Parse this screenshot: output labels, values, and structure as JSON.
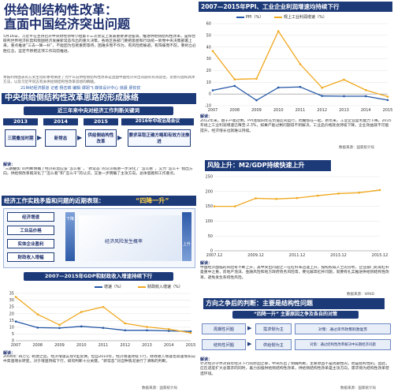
{
  "header": {
    "title_line1": "供给侧结构性改革：",
    "title_line2": "直面中国经济突出问题",
    "intro": "5月16日，习近平在主持召开中央财经领导小组第十三次会议上发表重要讲话强调，推进供给侧结构性改革，是综合研判世界经济形势和我国经济发展新常态作出的重大决策，各地区各部门要把思想和行动统一到党中央决策部署上来，重点推进“三去一降一补”，不能因为包袱重而等待，困难多而不作为，有风险而躲避，有阵痛而不前，要树立必胜信念，坚定不移把这项工作向前推进。",
    "source": "本报利用图表的方式生动形象地阐述了为什么说供给侧结构性改革是直面中国经济突出问题的有效途径，思想内涵和具体方法，以及习近平同志有关供给侧结构性改革思想的精髓。",
    "reporters": "21世纪经济报道 记者 杨志锦  编辑 谭翊飞  媒体设计中心 徐晨 廖钦钦"
  },
  "ideas_section": {
    "band": "中央供给侧结构性改革思路的形成脉络",
    "sub_band": "近三年来中央对经济工作判断关键词",
    "years": [
      "2013",
      "2014",
      "2015",
      "2016年中政治局会议"
    ],
    "steps": [
      "三期叠加时期",
      "新常态",
      "供给侧结构性改革",
      "要求采取正确方略和有效方法推进"
    ],
    "interp_label": "解读：",
    "interp_text": "“三期叠加”的判断明确了经济形势应该“怎么看”，“新常态”的认识既进一步深化了“怎么看”，又为“怎么干”指出方向，供给侧改革既深化了“怎么看”和“怎么干”的认识，又进一步明确了主攻方向，总体思路和工作重点。"
  },
  "contradiction_section": {
    "band": "经济工作实践矛盾和问题的近期表现：",
    "quote": "“四降一升”",
    "items": [
      "经济增速",
      "工业品价格",
      "实体企业盈利",
      "财政收入增幅"
    ],
    "down_label": "下降",
    "risk_label": "经济风险发生概率",
    "up_label": "上升"
  },
  "gdp_chart_section": {
    "band": "2007—2015年GDP和财政收入增速持续下行",
    "interp_label": "解读：",
    "interp_text": "2008年“四万亿”刺激之后，经济增速实现V型反弹。但自2010年，经济增速持续下行，财政收入增速也高速增长向中高速增长转变。对于增速持续下行，如何判断十分关键。“新常态”对这种情况进行了清晰的判断。",
    "credit": "数据来源：国家统计局"
  },
  "ppi_chart_section": {
    "band": "2007—2015年PPI、工业企业利润增速均持续下行",
    "interp_label": "解读：",
    "interp_text": "2012年来，由于产能过剩，PPI连续四年在负值区间运行，而叠加在一起，新年来，工业企业盈利能力下降，2015年规上工业利润增速已降至-2.3%，如果产能过剩问题得不到解决，工业品价格就会持续下降，企业效益就不可能提升，经济增长也就难以持续。",
    "credit": "数据来源：国家统计局"
  },
  "m2_chart_section": {
    "band": "风险上升：M2/GDP持续快速上升",
    "interp_label": "解读：",
    "interp_text": "中国经济面临的风险有不断上升，其中突出问题之一在杠杆率迅速上升，按照权威人士的分析，企业部门的高杠杆是重中之重，房地产泡沫、金融风险和地方政府债务风险等，要化解高杠杆问题，就要有扎实推进供给侧结构性改革，避免发生系统性风险。",
    "credit": "数据来源：WIND"
  },
  "direction_section": {
    "band": "方向之争后的判断：主要是结构性问题",
    "sub_band": "“四降一升”  主要原因之争及各自的对策",
    "left": [
      "周期性问题",
      "结构性问题"
    ],
    "mid": [
      "需求侧为主",
      "供给侧为主"
    ],
    "right": [
      "对策：通过货币政策刺激复苏",
      "对策：通过结构性改革解决中长期经济问题"
    ],
    "interp_label": "解读：",
    "interp_text": "针对经济学界对四年经济下行的原因之争，中央作出了明确判断，主要原因不是周期性的，而是结构性的。因此，应在适度扩大总需求的同时，着力加强供给侧结构性改革，供给侧结构性改革是主攻方向，需求侧为结构性改革营造环境。",
    "credit": "数据来源：国家统计局"
  },
  "chart_data": [
    {
      "type": "line",
      "title": "2007—2015年GDP和财政收入增速持续下行",
      "x": [
        "2007",
        "2008",
        "2009",
        "2010",
        "2011",
        "2012",
        "2013",
        "2014",
        "2015"
      ],
      "series": [
        {
          "name": "增速（%）",
          "values": [
            14.2,
            9.7,
            9.4,
            10.6,
            9.5,
            7.7,
            7.7,
            7.3,
            6.9
          ],
          "color": "#2255a4"
        },
        {
          "name": "财政收入增速（%）",
          "values": [
            32.4,
            19.5,
            11.7,
            21.3,
            25.0,
            12.8,
            10.2,
            8.6,
            5.8
          ],
          "color": "#f0a820"
        }
      ],
      "ylim": [
        0,
        35
      ],
      "yticks": [
        0,
        5,
        10,
        15,
        20,
        25,
        30,
        35
      ]
    },
    {
      "type": "line",
      "title": "2007—2015年PPI、工业企业利润增速均持续下行",
      "x": [
        "2007",
        "2008",
        "2009",
        "2010",
        "2011",
        "2012",
        "2013",
        "2014",
        "2015"
      ],
      "series": [
        {
          "name": "PPI（%）",
          "values": [
            3.1,
            6.9,
            -5.4,
            5.5,
            6.0,
            -1.7,
            -1.9,
            -1.9,
            -5.2
          ],
          "color": "#2255a4"
        },
        {
          "name": "规上工业利润增速（%）",
          "values": [
            36.7,
            12.5,
            13.0,
            53.6,
            25.4,
            5.3,
            12.2,
            3.3,
            -2.3
          ],
          "color": "#f0a820"
        }
      ],
      "ylim": [
        -10,
        60
      ],
      "yticks": [
        -10,
        0,
        10,
        20,
        30,
        40,
        50,
        60
      ]
    },
    {
      "type": "line",
      "title": "风险上升：M2/GDP持续快速上升",
      "x": [
        "2007.12",
        "2008.12",
        "2009.12",
        "2010.12",
        "2011.12",
        "2012.12",
        "2013.12",
        "2014.12",
        "2015.12"
      ],
      "xticks": [
        "2007.12",
        "2009.12",
        "2011.12",
        "2013.12",
        "2015.12"
      ],
      "series": [
        {
          "name": "M2/GDP",
          "values": [
            150,
            150,
            177,
            175,
            178,
            186,
            193,
            196,
            205
          ],
          "color": "#f0a820"
        }
      ],
      "ylim": [
        0,
        250
      ],
      "yticks": [
        0,
        50,
        100,
        150,
        200,
        250
      ]
    }
  ]
}
